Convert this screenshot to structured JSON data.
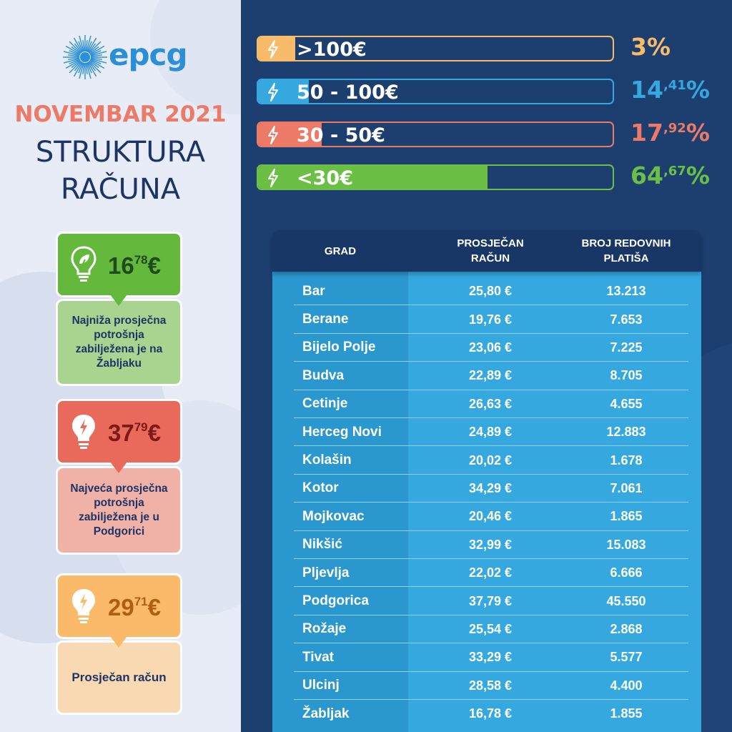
{
  "brand": {
    "logo_text": "epcg",
    "sun_color": "#2b8fd8"
  },
  "header": {
    "month": "NOVEMBAR 2021",
    "title_line1": "STRUKTURA",
    "title_line2": "RAČUNA"
  },
  "cards": [
    {
      "icon": "leaf-bulb-icon",
      "value_int": "16",
      "value_dec": "78",
      "currency": "€",
      "text": "Najniža prosječna potrošnja zabilježena je na Žabljaku",
      "top_color": "#64b83c",
      "bottom_color": "#a9d48f",
      "value_color": "#1f4a1f"
    },
    {
      "icon": "lightning-bulb-icon",
      "value_int": "37",
      "value_dec": "79",
      "currency": "€",
      "text": "Najveća prosječna potrošnja zabilježena je u Podgorici",
      "top_color": "#e9695b",
      "bottom_color": "#f0b1a7",
      "value_color": "#7b1a17"
    },
    {
      "icon": "lightning-bulb-icon",
      "value_int": "29",
      "value_dec": "71",
      "currency": "€",
      "text": "Prosječan račun",
      "top_color": "#fbb96a",
      "bottom_color": "#f9d9b2",
      "value_color": "#b25e12"
    }
  ],
  "chart_data": [
    {
      "type": "bar",
      "orientation": "horizontal",
      "categories": [
        ">100€",
        "50 - 100€",
        "30 - 50€",
        "<30€"
      ],
      "values": [
        3,
        14.41,
        17.92,
        64.67
      ],
      "value_labels": [
        {
          "int": "3",
          "dec": "",
          "unit": "%"
        },
        {
          "int": "14",
          "dec": ",41",
          "unit": "%"
        },
        {
          "int": "17",
          "dec": ",92",
          "unit": "%"
        },
        {
          "int": "64",
          "dec": ",67",
          "unit": "%"
        }
      ],
      "colors": [
        "#f8bb6a",
        "#35a8e0",
        "#ec7a67",
        "#6cbf45"
      ],
      "xlim": [
        0,
        100
      ]
    },
    {
      "type": "table",
      "columns": [
        "GRAD",
        "PROSJEČAN RAČUN",
        "BROJ REDOVNIH PLATIŠA"
      ],
      "rows": [
        {
          "city": "Bar",
          "avg": "25,80 €",
          "count": "13.213"
        },
        {
          "city": "Berane",
          "avg": "19,76 €",
          "count": "7.653"
        },
        {
          "city": "Bijelo Polje",
          "avg": "23,06 €",
          "count": "7.225"
        },
        {
          "city": "Budva",
          "avg": "22,89 €",
          "count": "8.705"
        },
        {
          "city": "Cetinje",
          "avg": "26,63 €",
          "count": "4.655"
        },
        {
          "city": "Herceg Novi",
          "avg": "24,89 €",
          "count": "12.883"
        },
        {
          "city": "Kolašin",
          "avg": "20,02 €",
          "count": "1.678"
        },
        {
          "city": "Kotor",
          "avg": "34,29 €",
          "count": "7.061"
        },
        {
          "city": "Mojkovac",
          "avg": "20,46 €",
          "count": "1.865"
        },
        {
          "city": "Nikšić",
          "avg": "32,99 €",
          "count": "15.083"
        },
        {
          "city": "Pljevlja",
          "avg": "22,02 €",
          "count": "6.666"
        },
        {
          "city": "Podgorica",
          "avg": "37,79 €",
          "count": "45.550"
        },
        {
          "city": "Rožaje",
          "avg": "25,54 €",
          "count": "2.868"
        },
        {
          "city": "Tivat",
          "avg": "33,29 €",
          "count": "5.577"
        },
        {
          "city": "Ulcinj",
          "avg": "28,58 €",
          "count": "4.400"
        },
        {
          "city": "Žabljak",
          "avg": "16,78 €",
          "count": "1.855"
        }
      ]
    }
  ]
}
